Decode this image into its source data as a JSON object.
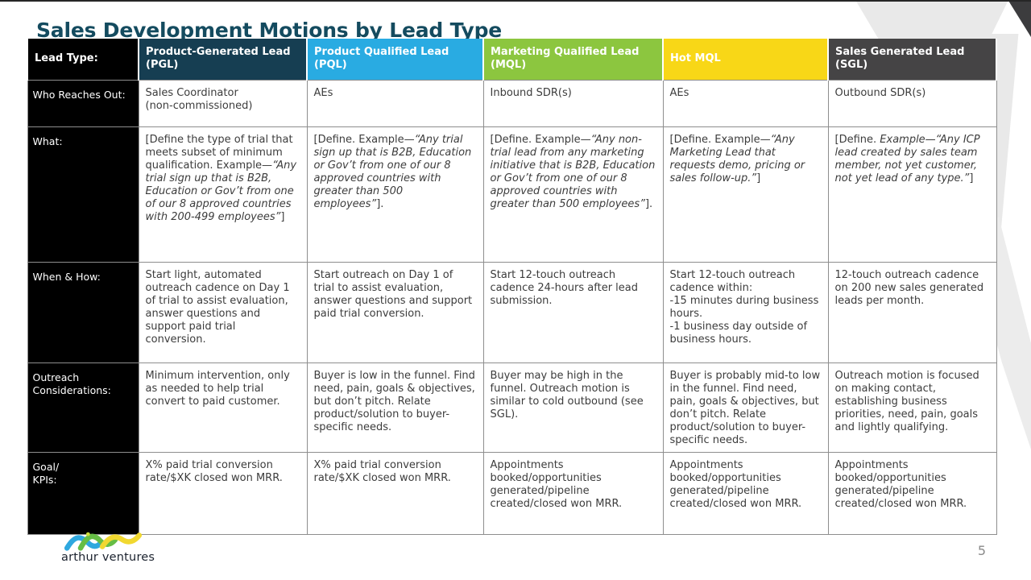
{
  "slide": {
    "title": "Sales Development Motions by Lead Type",
    "page_number": "5"
  },
  "logo": {
    "name": "arthur ventures",
    "mark_colors": {
      "blue": "#2fa8df",
      "green": "#66bd45",
      "yellow": "#f1d830"
    }
  },
  "colors": {
    "title": "#144b5f",
    "row_label_bg": "#000000",
    "border": "#8e8e8e",
    "body_text": "#3c3c3c"
  },
  "table": {
    "columns": [
      {
        "label": "Lead Type:",
        "bg": "#000000",
        "fg": "#ffffff"
      },
      {
        "label": "Product-Generated Lead (PGL)",
        "bg": "#163e52",
        "fg": "#ffffff"
      },
      {
        "label": "Product Qualified Lead (PQL)",
        "bg": "#29abe2",
        "fg": "#ffffff"
      },
      {
        "label": "Marketing Qualified Lead (MQL)",
        "bg": "#8cc63f",
        "fg": "#ffffff"
      },
      {
        "label": "Hot MQL",
        "bg": "#f8d717",
        "fg": "#ffffff"
      },
      {
        "label": "Sales Generated Lead (SGL)",
        "bg": "#454445",
        "fg": "#ffffff"
      }
    ],
    "rows": [
      {
        "label": "Who Reaches Out:",
        "cells": [
          {
            "runs": [
              {
                "t": "Sales Coordinator\n(non-commissioned)",
                "i": false
              }
            ]
          },
          {
            "runs": [
              {
                "t": "AEs",
                "i": false
              }
            ]
          },
          {
            "runs": [
              {
                "t": "Inbound SDR(s)",
                "i": false
              }
            ]
          },
          {
            "runs": [
              {
                "t": "AEs",
                "i": false
              }
            ]
          },
          {
            "runs": [
              {
                "t": "Outbound SDR(s)",
                "i": false
              }
            ]
          }
        ]
      },
      {
        "label": "What:",
        "cells": [
          {
            "runs": [
              {
                "t": "[Define the type of trial that meets subset of minimum qualification. Example—",
                "i": false
              },
              {
                "t": "“Any trial sign up that is B2B, Education or Gov’t from one of our 8 approved countries with 200-499 employees”",
                "i": true
              },
              {
                "t": "]",
                "i": false
              }
            ]
          },
          {
            "runs": [
              {
                "t": "[Define. Example—",
                "i": false
              },
              {
                "t": "“Any trial sign up that is B2B, Education or Gov’t from one of our 8 approved countries with greater than 500 employees”",
                "i": true
              },
              {
                "t": "].",
                "i": false
              }
            ]
          },
          {
            "runs": [
              {
                "t": "[Define. Example—",
                "i": false
              },
              {
                "t": "“Any non-trial lead from any marketing initiative that is B2B, Education or Gov’t from one of our 8 approved countries with greater than 500 employees”",
                "i": true
              },
              {
                "t": "].",
                "i": false
              }
            ]
          },
          {
            "runs": [
              {
                "t": "[Define. Example—",
                "i": false
              },
              {
                "t": "“Any Marketing Lead that requests demo, pricing or sales follow-up.”",
                "i": true
              },
              {
                "t": "]",
                "i": false
              }
            ]
          },
          {
            "runs": [
              {
                "t": "[Define. ",
                "i": false
              },
              {
                "t": "Example—“Any ICP lead created by sales team member, not yet customer, not yet lead of any type.”",
                "i": true
              },
              {
                "t": "]",
                "i": false
              }
            ]
          }
        ]
      },
      {
        "label": "When & How:",
        "cells": [
          {
            "runs": [
              {
                "t": "Start light, automated outreach cadence on Day 1 of trial to assist evaluation, answer questions and support paid trial conversion.",
                "i": false
              }
            ]
          },
          {
            "runs": [
              {
                "t": "Start outreach on Day 1 of trial to assist evaluation, answer questions and support paid trial conversion.",
                "i": false
              }
            ]
          },
          {
            "runs": [
              {
                "t": "Start 12-touch outreach cadence 24-hours after lead submission.",
                "i": false
              }
            ]
          },
          {
            "runs": [
              {
                "t": "Start 12-touch outreach cadence within:\n-15 minutes during business hours.\n-1 business day outside of business hours.",
                "i": false
              }
            ]
          },
          {
            "runs": [
              {
                "t": "12-touch outreach cadence on 200 new sales generated leads per month.",
                "i": false
              }
            ]
          }
        ]
      },
      {
        "label": "Outreach\nConsiderations:",
        "cells": [
          {
            "runs": [
              {
                "t": "Minimum intervention, only as needed to help trial convert to paid customer.",
                "i": false
              }
            ]
          },
          {
            "runs": [
              {
                "t": "Buyer is low in the funnel. Find need, pain, goals & objectives, but don’t pitch. Relate product/solution to buyer-specific needs.",
                "i": false
              }
            ]
          },
          {
            "runs": [
              {
                "t": "Buyer may be high in the funnel. Outreach motion is similar to cold outbound (see SGL).",
                "i": false
              }
            ]
          },
          {
            "runs": [
              {
                "t": "Buyer is probably mid-to low in the funnel. Find need, pain, goals & objectives, but don’t pitch. Relate product/solution to buyer-specific needs.",
                "i": false
              }
            ]
          },
          {
            "runs": [
              {
                "t": "Outreach motion is focused on making contact, establishing business priorities, need, pain, goals and lightly qualifying.",
                "i": false
              }
            ]
          }
        ]
      },
      {
        "label": "Goal/\nKPIs:",
        "cells": [
          {
            "runs": [
              {
                "t": "X% paid trial conversion\nrate/$XK closed won MRR.",
                "i": false
              }
            ]
          },
          {
            "runs": [
              {
                "t": "X% paid trial conversion\nrate/$XK closed won MRR.",
                "i": false
              }
            ]
          },
          {
            "runs": [
              {
                "t": "Appointments\nbooked/opportunities\ngenerated/pipeline\ncreated/closed won MRR.",
                "i": false
              }
            ]
          },
          {
            "runs": [
              {
                "t": "Appointments\nbooked/opportunities\ngenerated/pipeline\ncreated/closed won MRR.",
                "i": false
              }
            ]
          },
          {
            "runs": [
              {
                "t": "Appointments\nbooked/opportunities\ngenerated/pipeline\ncreated/closed won MRR.",
                "i": false
              }
            ]
          }
        ]
      }
    ]
  }
}
